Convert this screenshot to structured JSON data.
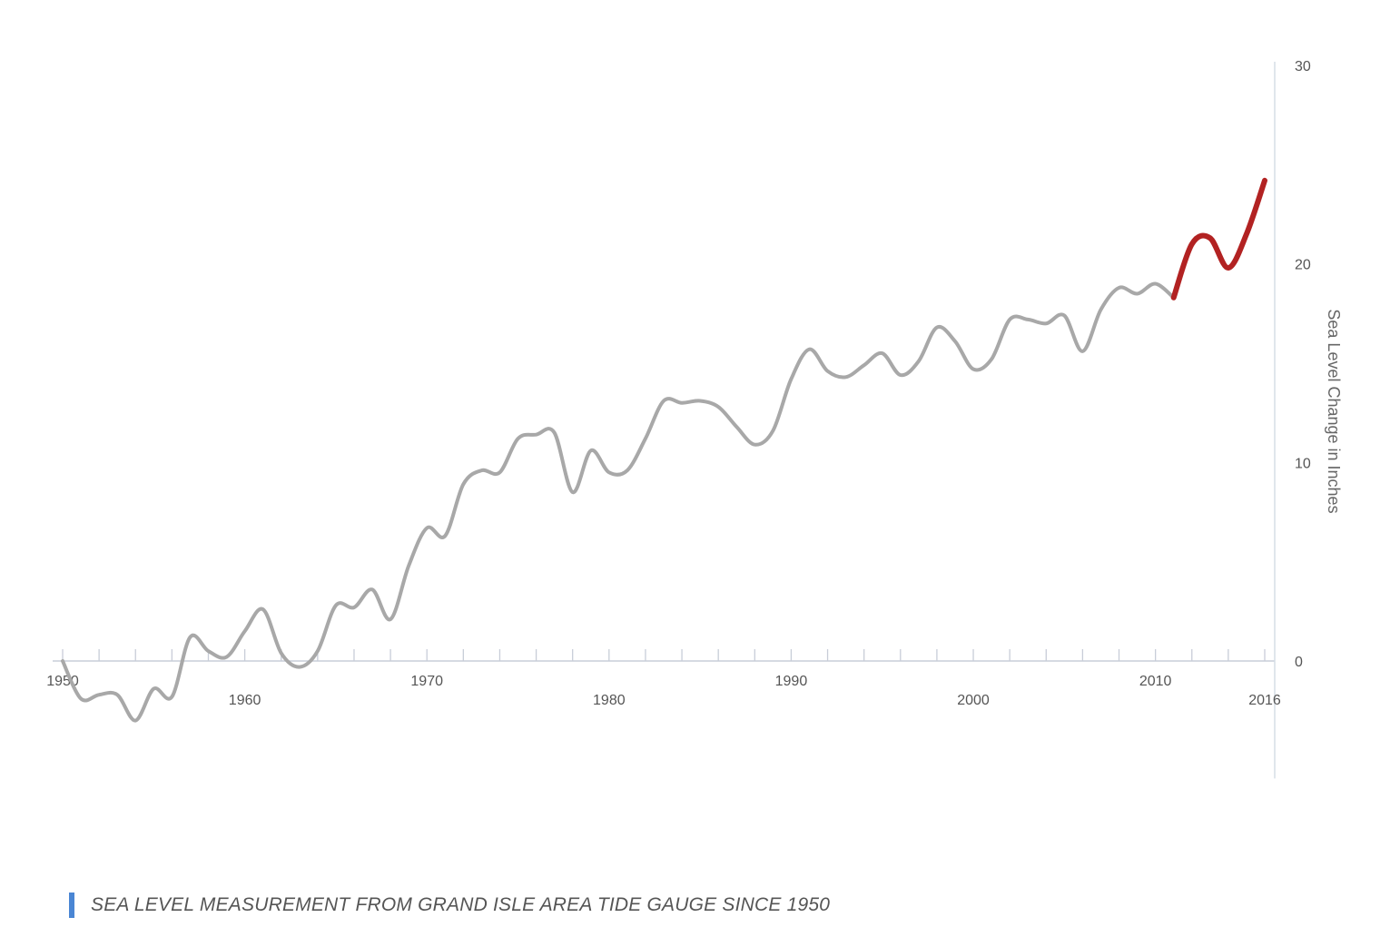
{
  "caption": "SEA LEVEL MEASUREMENT FROM GRAND ISLE AREA TIDE GAUGE SINCE 1950",
  "colors": {
    "history_line": "#a8a8a8",
    "recent_line": "#b22222",
    "axis": "#c8cdd8",
    "caption_bar": "#4a86d4"
  },
  "chart_data": {
    "type": "line",
    "title": "",
    "xlabel": "",
    "ylabel": "Sea Level Change in Inches",
    "xlim": [
      1950,
      2016
    ],
    "ylim": [
      -5,
      30
    ],
    "y_ticks": [
      0,
      10,
      20,
      30
    ],
    "x_tick_labels": [
      1950,
      1960,
      1970,
      1980,
      1990,
      2000,
      2010,
      2016
    ],
    "x_minor_tick_step": 2,
    "y_axis_position": "right",
    "grid": false,
    "legend": "none",
    "series": [
      {
        "key": "history",
        "x": [
          1950,
          1951,
          1952,
          1953,
          1954,
          1955,
          1956,
          1957,
          1958,
          1959,
          1960,
          1961,
          1962,
          1963,
          1964,
          1965,
          1966,
          1967,
          1968,
          1969,
          1970,
          1971,
          1972,
          1973,
          1974,
          1975,
          1976,
          1977,
          1978,
          1979,
          1980,
          1981,
          1982,
          1983,
          1984,
          1985,
          1986,
          1987,
          1988,
          1989,
          1990,
          1991,
          1992,
          1993,
          1994,
          1995,
          1996,
          1997,
          1998,
          1999,
          2000,
          2001,
          2002,
          2003,
          2004,
          2005,
          2006,
          2007,
          2008,
          2009,
          2010,
          2011
        ],
        "y": [
          0,
          -1.9,
          -1.7,
          -1.7,
          -3,
          -1.4,
          -1.8,
          1.2,
          0.5,
          0.2,
          1.5,
          2.6,
          0.4,
          -0.3,
          0.5,
          2.8,
          2.7,
          3.6,
          2.1,
          4.8,
          6.7,
          6.3,
          8.9,
          9.6,
          9.5,
          11.2,
          11.4,
          11.5,
          8.5,
          10.6,
          9.5,
          9.6,
          11.2,
          13.1,
          13.0,
          13.1,
          12.8,
          11.8,
          10.9,
          11.6,
          14.2,
          15.7,
          14.6,
          14.3,
          14.9,
          15.5,
          14.4,
          15.1,
          16.8,
          16.1,
          14.7,
          15.2,
          17.2,
          17.2,
          17.0,
          17.4,
          15.6,
          17.7,
          18.8,
          18.5,
          19.0,
          18.3
        ]
      },
      {
        "key": "recent",
        "x": [
          2011,
          2012,
          2013,
          2014,
          2015,
          2016
        ],
        "y": [
          18.3,
          21.0,
          21.3,
          19.8,
          21.5,
          24.2
        ]
      }
    ]
  }
}
